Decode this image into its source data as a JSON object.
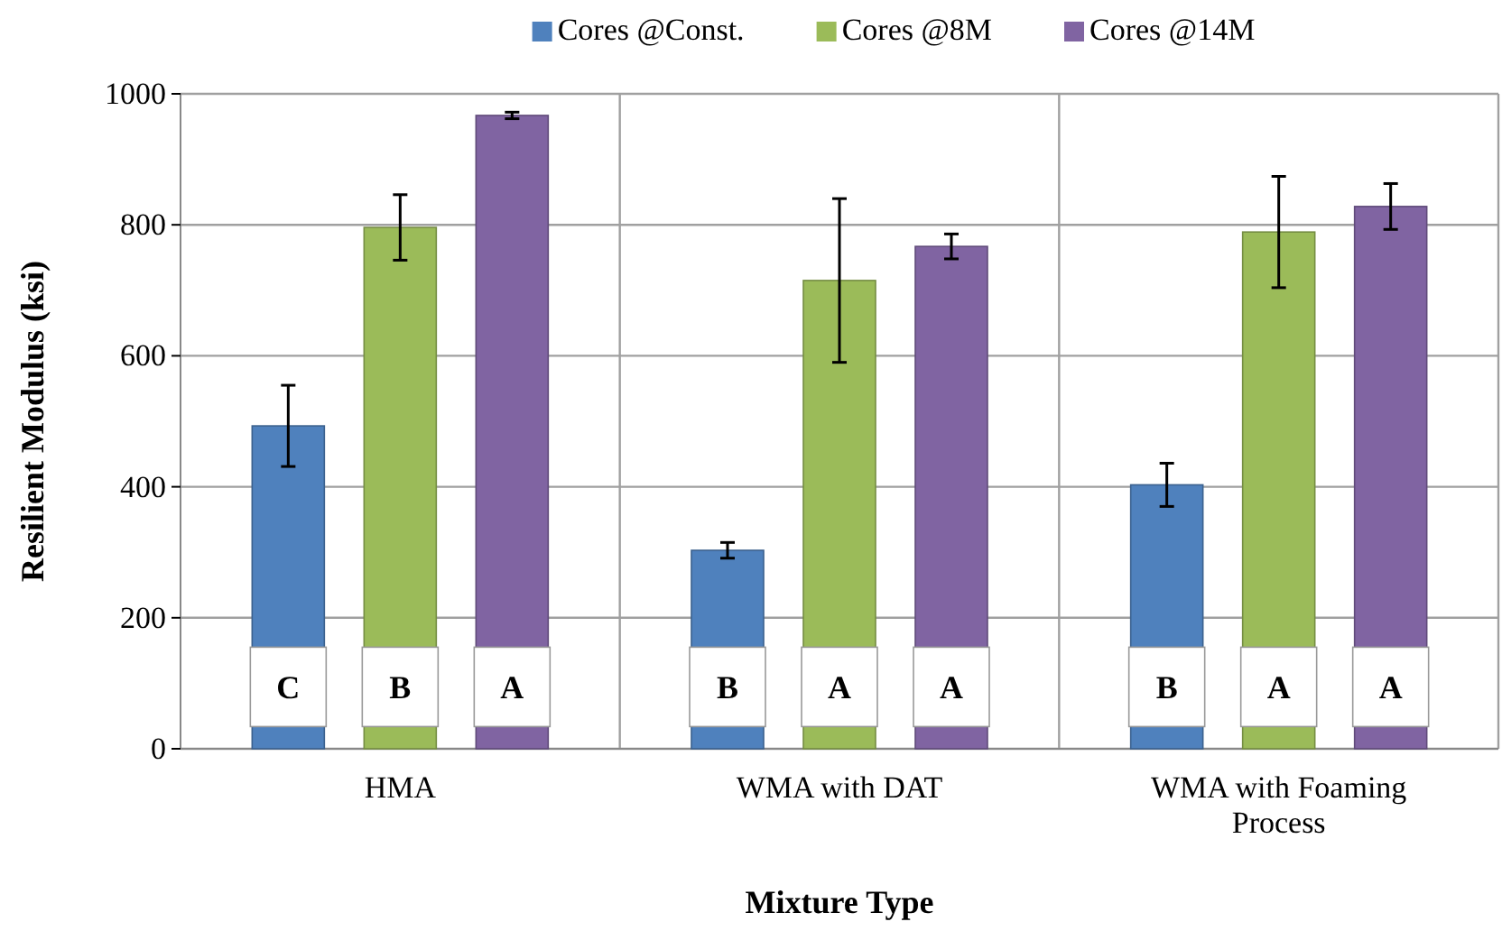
{
  "chart_data": {
    "type": "bar",
    "xlabel": "Mixture Type",
    "ylabel": "Resilient Modulus (ksi)",
    "categories": [
      "HMA",
      "WMA with DAT",
      "WMA with Foaming Process"
    ],
    "series": [
      {
        "name": "Cores @Const.",
        "color": "#4f81bd",
        "values": [
          493,
          303,
          403
        ],
        "errors": [
          62,
          12,
          33
        ]
      },
      {
        "name": "Cores @8M",
        "color": "#9bbb59",
        "values": [
          796,
          715,
          789
        ],
        "errors": [
          50,
          125,
          85
        ]
      },
      {
        "name": "Cores @14M",
        "color": "#8064a2",
        "values": [
          967,
          767,
          828
        ],
        "errors": [
          5,
          19,
          35
        ]
      }
    ],
    "ylim": [
      0,
      1000
    ],
    "yticks": [
      0,
      200,
      400,
      600,
      800,
      1000
    ],
    "grid": true,
    "legend": "top",
    "annotations": [
      "C",
      "B",
      "A",
      "B",
      "A",
      "A",
      "B",
      "A",
      "A"
    ]
  }
}
